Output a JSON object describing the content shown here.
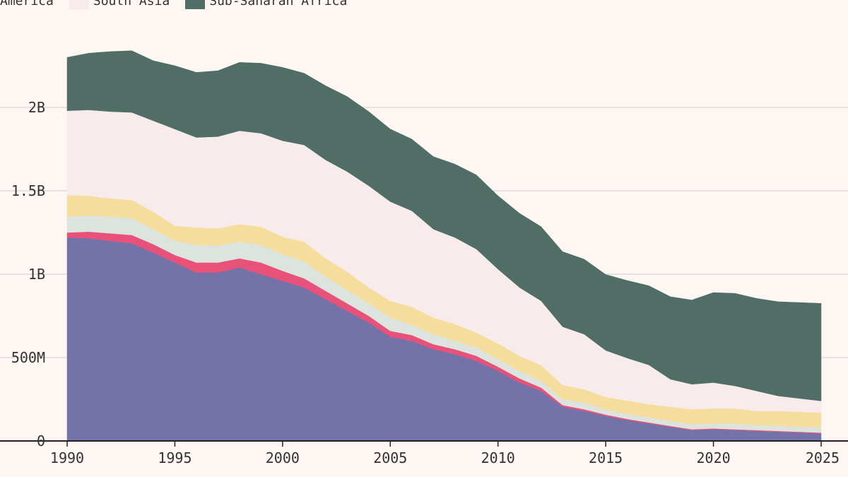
{
  "colors": {
    "background": "#fdf6f2",
    "grid": "#c9cfca",
    "axis": "#222222",
    "tick_text": "#333333"
  },
  "chart_data": {
    "type": "area",
    "stacked": true,
    "grid": "horizontal",
    "legend_position": "top-left",
    "xlim": [
      1990,
      2025
    ],
    "ylim": [
      0,
      2500000000
    ],
    "x_ticks": [
      1990,
      1995,
      2000,
      2005,
      2010,
      2015,
      2020,
      2025
    ],
    "y_ticks": [
      {
        "value": 0,
        "label": "0"
      },
      {
        "value": 500000000,
        "label": "500M"
      },
      {
        "value": 1000000000,
        "label": "1B"
      },
      {
        "value": 1500000000,
        "label": "1.5B"
      },
      {
        "value": 2000000000,
        "label": "2B"
      }
    ],
    "x": [
      1990,
      1991,
      1992,
      1993,
      1994,
      1995,
      1996,
      1997,
      1998,
      1999,
      2000,
      2001,
      2002,
      2003,
      2004,
      2005,
      2006,
      2007,
      2008,
      2009,
      2010,
      2011,
      2012,
      2013,
      2014,
      2015,
      2016,
      2017,
      2018,
      2019,
      2020,
      2021,
      2022,
      2023,
      2024,
      2025
    ],
    "series": [
      {
        "color": "#7373a9",
        "values": [
          1220,
          1215,
          1200,
          1185,
          1130,
          1070,
          1010,
          1010,
          1040,
          1000,
          960,
          920,
          850,
          780,
          710,
          625,
          600,
          550,
          520,
          480,
          420,
          350,
          300,
          205,
          180,
          150,
          125,
          105,
          85,
          65,
          70,
          65,
          60,
          55,
          50,
          45
        ]
      },
      {
        "color": "#e8527a",
        "values": [
          30,
          40,
          45,
          50,
          50,
          45,
          60,
          60,
          55,
          70,
          60,
          55,
          50,
          45,
          40,
          35,
          35,
          30,
          30,
          30,
          25,
          25,
          20,
          10,
          10,
          8,
          7,
          6,
          5,
          5,
          5,
          5,
          5,
          5,
          5,
          5
        ]
      },
      {
        "color": "#dde4df",
        "values": [
          95,
          95,
          100,
          100,
          90,
          85,
          105,
          100,
          100,
          105,
          100,
          100,
          85,
          80,
          75,
          80,
          60,
          60,
          50,
          50,
          45,
          45,
          40,
          35,
          40,
          30,
          30,
          30,
          30,
          30,
          30,
          35,
          30,
          30,
          30,
          30
        ]
      },
      {
        "color": "#f5dd9e",
        "values": [
          130,
          120,
          110,
          110,
          105,
          90,
          105,
          105,
          105,
          110,
          105,
          120,
          110,
          110,
          95,
          100,
          110,
          100,
          100,
          90,
          95,
          90,
          95,
          85,
          80,
          75,
          80,
          80,
          85,
          90,
          90,
          90,
          85,
          90,
          90,
          90
        ]
      },
      {
        "color": "#f7eceb",
        "values": [
          505,
          515,
          520,
          525,
          545,
          580,
          540,
          550,
          560,
          560,
          575,
          580,
          590,
          600,
          610,
          595,
          575,
          530,
          520,
          500,
          445,
          410,
          385,
          350,
          330,
          280,
          255,
          235,
          165,
          150,
          155,
          135,
          120,
          90,
          80,
          70
        ]
      },
      {
        "color": "#506e66",
        "values": [
          320,
          340,
          360,
          370,
          360,
          380,
          390,
          395,
          410,
          420,
          440,
          430,
          445,
          450,
          445,
          435,
          430,
          435,
          440,
          445,
          440,
          445,
          445,
          450,
          450,
          455,
          465,
          475,
          495,
          505,
          540,
          555,
          555,
          565,
          575,
          585
        ]
      }
    ],
    "legend": [
      {
        "label": "America",
        "color": "#f5dd9e"
      },
      {
        "label": "South Asia",
        "color": "#f7eceb"
      },
      {
        "label": "Sub-Saharan Africa",
        "color": "#506e66"
      }
    ]
  }
}
